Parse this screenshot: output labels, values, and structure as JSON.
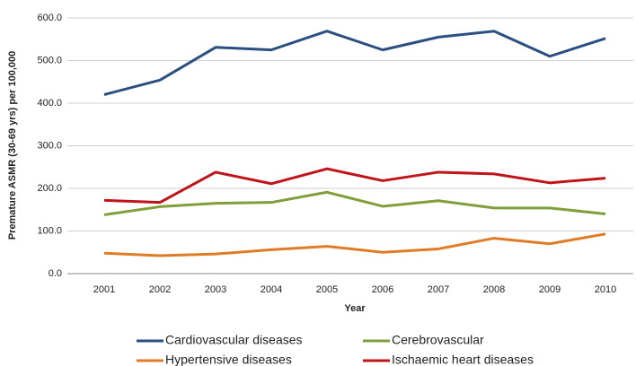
{
  "chart_data": {
    "type": "line",
    "y_label": "Premature ASMR (30-69 yrs) per 100,000",
    "x_label": "Year",
    "categories": [
      "2001",
      "2002",
      "2003",
      "2004",
      "2005",
      "2006",
      "2007",
      "2008",
      "2009",
      "2010"
    ],
    "series": [
      {
        "name": "Cardiovascular diseases",
        "color": "#2a4f80",
        "values": [
          420,
          454,
          531,
          525,
          569,
          525,
          555,
          569,
          510,
          552
        ]
      },
      {
        "name": "Cerebrovascular",
        "color": "#7f9f3b",
        "values": [
          138,
          157,
          165,
          167,
          191,
          158,
          171,
          154,
          154,
          140
        ]
      },
      {
        "name": "Hypertensive diseases",
        "color": "#e07b26",
        "values": [
          48,
          42,
          46,
          56,
          64,
          50,
          58,
          83,
          70,
          93
        ]
      },
      {
        "name": "Ischaemic heart diseases",
        "color": "#c0141b",
        "values": [
          172,
          167,
          238,
          211,
          246,
          218,
          238,
          234,
          213,
          224
        ]
      }
    ],
    "ylim": [
      0,
      600
    ],
    "yticks": [
      {
        "value": 0,
        "label": "0.0"
      },
      {
        "value": 100,
        "label": "100.0"
      },
      {
        "value": 200,
        "label": "200.0"
      },
      {
        "value": 300,
        "label": "300.0"
      },
      {
        "value": 400,
        "label": "400.0"
      },
      {
        "value": 500,
        "label": "500.0"
      },
      {
        "value": 600,
        "label": "600.0"
      }
    ],
    "grid": true
  }
}
